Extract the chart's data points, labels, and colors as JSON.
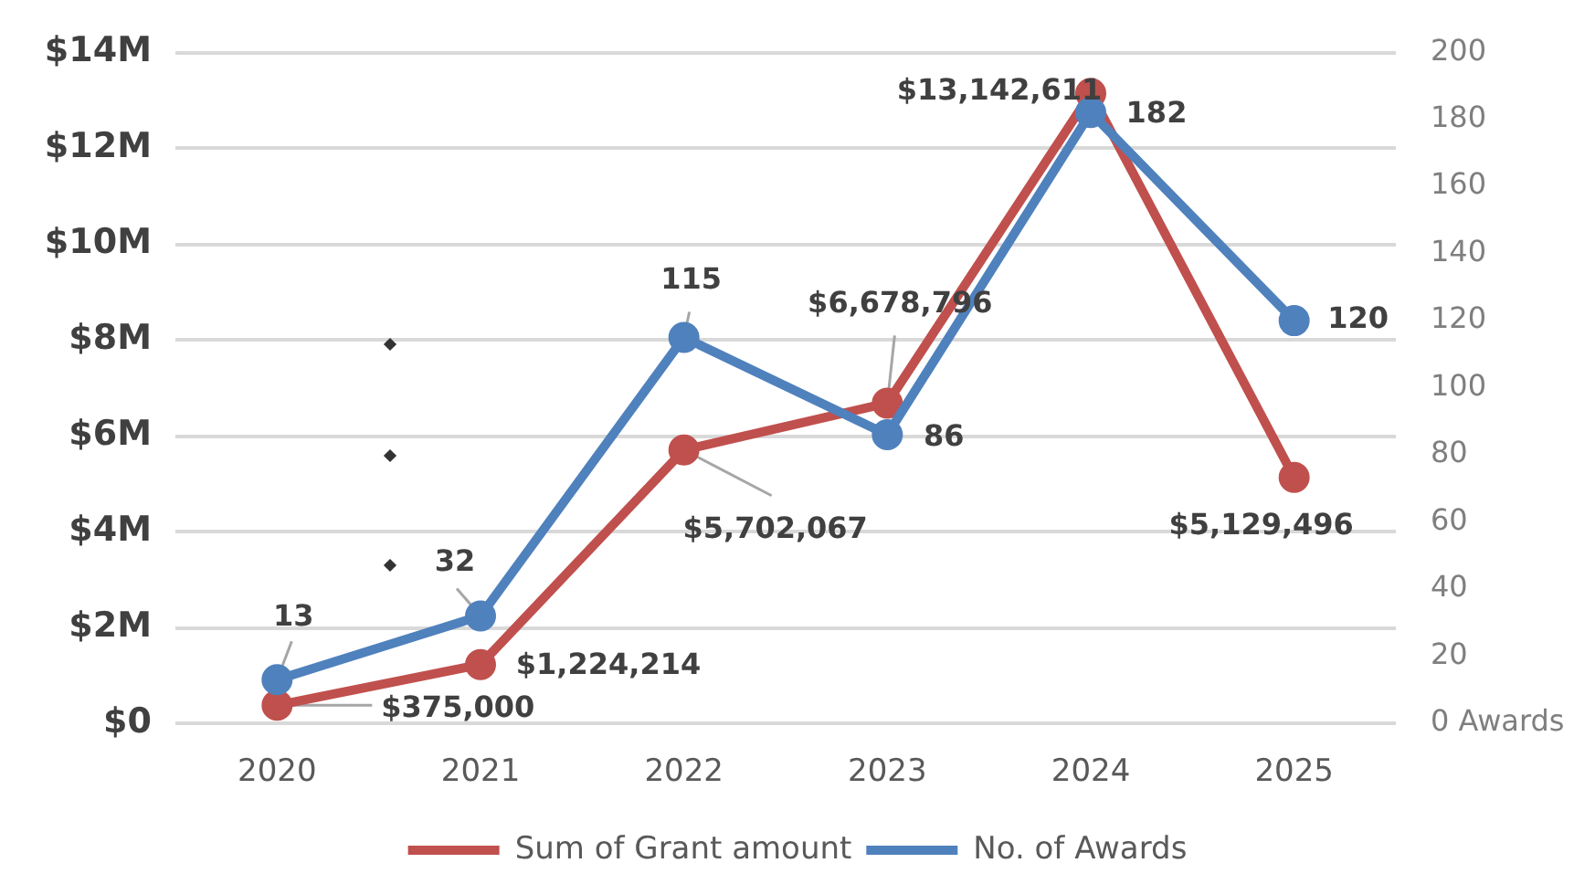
{
  "chart_data": {
    "type": "line",
    "categories": [
      "2020",
      "2021",
      "2022",
      "2023",
      "2024",
      "2025"
    ],
    "series": [
      {
        "name": "Sum of Grant amount",
        "color": "#c0504d",
        "values": [
          375000,
          1224214,
          5702067,
          6678796,
          13142611,
          5129496
        ],
        "value_labels": [
          "$375,000",
          "$1,224,214",
          "$5,702,067",
          "$6,678,796",
          "$13,142,611",
          "$5,129,496"
        ]
      },
      {
        "name": "No. of Awards",
        "color": "#4f81bd",
        "axis": "y2",
        "values": [
          13,
          32,
          115,
          86,
          182,
          120
        ],
        "value_labels": [
          "13",
          "32",
          "115",
          "86",
          "182",
          "120"
        ]
      }
    ],
    "ylim": [
      0,
      14000000
    ],
    "yticks": [
      {
        "value": 0,
        "label": "$0"
      },
      {
        "value": 2000000,
        "label": "$2M"
      },
      {
        "value": 4000000,
        "label": "$4M"
      },
      {
        "value": 6000000,
        "label": "$6M"
      },
      {
        "value": 8000000,
        "label": "$8M"
      },
      {
        "value": 10000000,
        "label": "$10M"
      },
      {
        "value": 12000000,
        "label": "$12M"
      },
      {
        "value": 14000000,
        "label": "$14M"
      }
    ],
    "y2lim": [
      0,
      200
    ],
    "y2ticks": [
      {
        "value": 0,
        "label": "0 Awards"
      },
      20,
      40,
      60,
      80,
      100,
      120,
      140,
      160,
      180,
      200
    ],
    "grid": "y",
    "legend": "bottom",
    "marker": "circle",
    "line_style": "solid"
  }
}
